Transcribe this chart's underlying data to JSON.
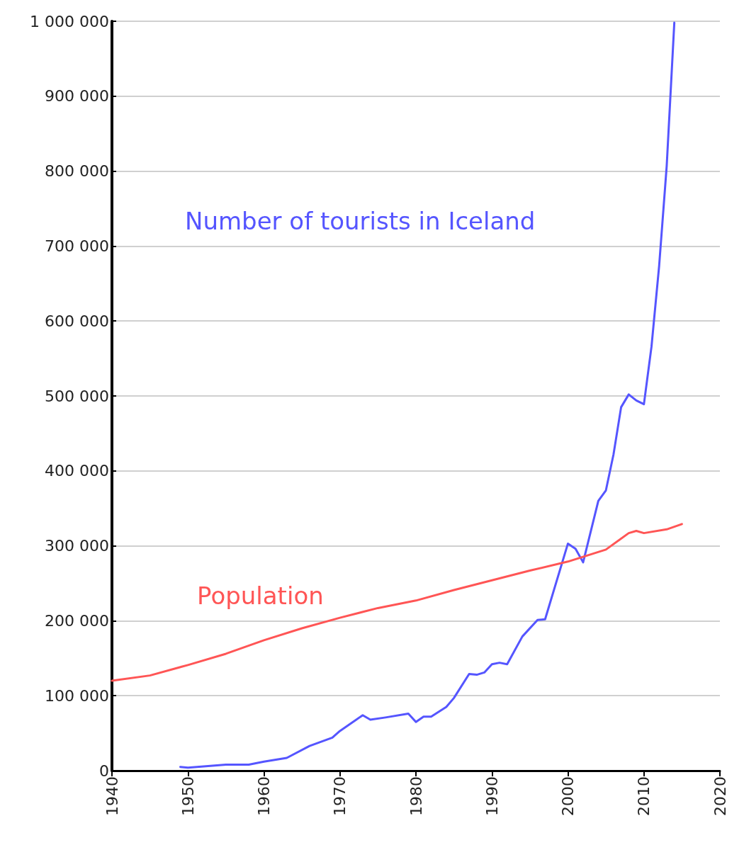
{
  "chart_data": {
    "type": "line",
    "xlim": [
      1940,
      2020
    ],
    "xticks": [
      1940,
      1950,
      1960,
      1970,
      1980,
      1990,
      2000,
      2010,
      2020
    ],
    "ylim": [
      0,
      1000000
    ],
    "yticks": [
      {
        "value": 0,
        "label": "0"
      },
      {
        "value": 100000,
        "label": "100 000"
      },
      {
        "value": 200000,
        "label": "200 000"
      },
      {
        "value": 300000,
        "label": "300 000"
      },
      {
        "value": 400000,
        "label": "400 000"
      },
      {
        "value": 500000,
        "label": "500 000"
      },
      {
        "value": 600000,
        "label": "600 000"
      },
      {
        "value": 700000,
        "label": "700 000"
      },
      {
        "value": 800000,
        "label": "800 000"
      },
      {
        "value": 900000,
        "label": "900 000"
      },
      {
        "value": 1000000,
        "label": "1 000 000"
      }
    ],
    "grid": "y",
    "marker": "none",
    "line_style": "solid",
    "series": [
      {
        "name": "Number of tourists in Iceland",
        "color": "#5555ff",
        "x": [
          1949,
          1950,
          1955,
          1958,
          1960,
          1963,
          1966,
          1969,
          1970,
          1973,
          1974,
          1976,
          1979,
          1980,
          1981,
          1982,
          1984,
          1985,
          1987,
          1988,
          1989,
          1990,
          1991,
          1992,
          1994,
          1996,
          1997,
          2000,
          2001,
          2002,
          2004,
          2005,
          2006,
          2007,
          2008,
          2009,
          2010,
          2011,
          2012,
          2013,
          2014
        ],
        "values": [
          5000,
          4000,
          8000,
          8000,
          12000,
          17000,
          33000,
          44000,
          53000,
          74000,
          68000,
          71000,
          76000,
          65000,
          72000,
          72000,
          85000,
          97000,
          129000,
          128000,
          131000,
          142000,
          144000,
          142000,
          179000,
          201000,
          202000,
          303000,
          296000,
          278000,
          360000,
          374000,
          422000,
          485000,
          502000,
          494000,
          489000,
          566000,
          673000,
          807000,
          998000
        ]
      },
      {
        "name": "Population",
        "color": "#ff5555",
        "x": [
          1940,
          1945,
          1950,
          1955,
          1960,
          1965,
          1970,
          1975,
          1980,
          1985,
          1990,
          1995,
          2000,
          2005,
          2008,
          2009,
          2010,
          2013,
          2015
        ],
        "values": [
          120000,
          127000,
          141000,
          156000,
          174000,
          190000,
          204000,
          217000,
          227000,
          241000,
          254000,
          267000,
          279000,
          295000,
          317000,
          320000,
          317000,
          322000,
          329000
        ]
      }
    ]
  }
}
